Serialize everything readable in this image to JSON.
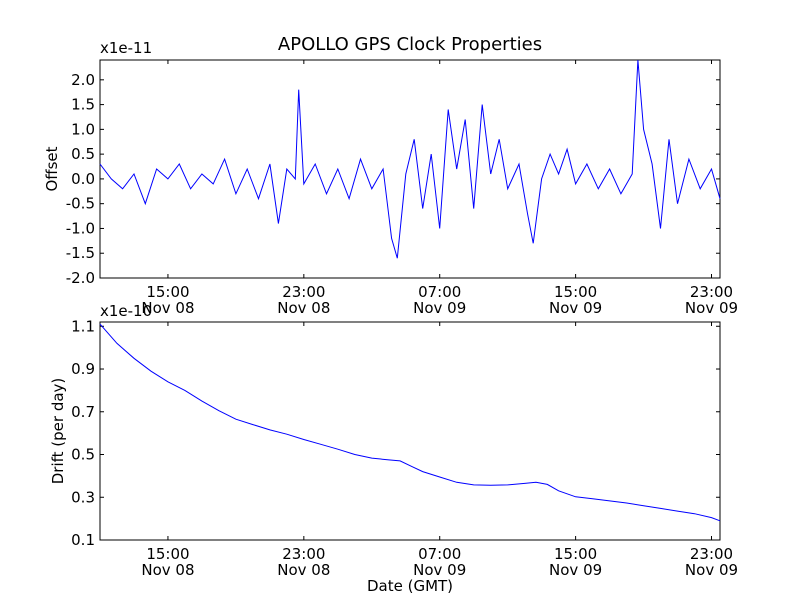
{
  "chart_data": [
    {
      "type": "line",
      "title": "APOLLO GPS Clock Properties",
      "xlabel": "",
      "ylabel": "Offset",
      "y_scale_text": "x1e-11",
      "xlim": [
        "2011-11-08 11:00",
        "2011-11-09 23:30"
      ],
      "ylim": [
        -2.0,
        2.4
      ],
      "yticks": [
        -2.0,
        -1.5,
        -1.0,
        -0.5,
        0.0,
        0.5,
        1.0,
        1.5,
        2.0
      ],
      "ytick_labels": [
        "-2.0",
        "-1.5",
        "-1.0",
        "-0.5",
        "0.0",
        "0.5",
        "1.0",
        "1.5",
        "2.0"
      ],
      "xticks": [
        {
          "at": "2011-11-08 15:00",
          "time": "15:00",
          "date": "Nov 08"
        },
        {
          "at": "2011-11-08 23:00",
          "time": "23:00",
          "date": "Nov 08"
        },
        {
          "at": "2011-11-09 07:00",
          "time": "07:00",
          "date": "Nov 09"
        },
        {
          "at": "2011-11-09 15:00",
          "time": "15:00",
          "date": "Nov 09"
        },
        {
          "at": "2011-11-09 23:00",
          "time": "23:00",
          "date": "Nov 09"
        }
      ],
      "grid": false,
      "line_color": "#0000ff",
      "series": [
        {
          "points": [
            [
              "2011-11-08 11:00",
              0.3
            ],
            [
              "2011-11-08 11:40",
              0.0
            ],
            [
              "2011-11-08 12:20",
              -0.2
            ],
            [
              "2011-11-08 13:00",
              0.1
            ],
            [
              "2011-11-08 13:40",
              -0.5
            ],
            [
              "2011-11-08 14:20",
              0.2
            ],
            [
              "2011-11-08 15:00",
              0.0
            ],
            [
              "2011-11-08 15:40",
              0.3
            ],
            [
              "2011-11-08 16:20",
              -0.2
            ],
            [
              "2011-11-08 17:00",
              0.1
            ],
            [
              "2011-11-08 17:40",
              -0.1
            ],
            [
              "2011-11-08 18:20",
              0.4
            ],
            [
              "2011-11-08 19:00",
              -0.3
            ],
            [
              "2011-11-08 19:40",
              0.2
            ],
            [
              "2011-11-08 20:20",
              -0.4
            ],
            [
              "2011-11-08 21:00",
              0.3
            ],
            [
              "2011-11-08 21:30",
              -0.9
            ],
            [
              "2011-11-08 22:00",
              0.2
            ],
            [
              "2011-11-08 22:30",
              0.0
            ],
            [
              "2011-11-08 22:42",
              1.8
            ],
            [
              "2011-11-08 23:00",
              -0.1
            ],
            [
              "2011-11-08 23:40",
              0.3
            ],
            [
              "2011-11-09 00:20",
              -0.3
            ],
            [
              "2011-11-09 01:00",
              0.2
            ],
            [
              "2011-11-09 01:40",
              -0.4
            ],
            [
              "2011-11-09 02:20",
              0.4
            ],
            [
              "2011-11-09 03:00",
              -0.2
            ],
            [
              "2011-11-09 03:40",
              0.2
            ],
            [
              "2011-11-09 04:10",
              -1.2
            ],
            [
              "2011-11-09 04:30",
              -1.6
            ],
            [
              "2011-11-09 05:00",
              0.1
            ],
            [
              "2011-11-09 05:30",
              0.8
            ],
            [
              "2011-11-09 06:00",
              -0.6
            ],
            [
              "2011-11-09 06:30",
              0.5
            ],
            [
              "2011-11-09 07:00",
              -1.0
            ],
            [
              "2011-11-09 07:30",
              1.4
            ],
            [
              "2011-11-09 08:00",
              0.2
            ],
            [
              "2011-11-09 08:30",
              1.2
            ],
            [
              "2011-11-09 09:00",
              -0.6
            ],
            [
              "2011-11-09 09:30",
              1.5
            ],
            [
              "2011-11-09 10:00",
              0.1
            ],
            [
              "2011-11-09 10:30",
              0.8
            ],
            [
              "2011-11-09 11:00",
              -0.2
            ],
            [
              "2011-11-09 11:40",
              0.3
            ],
            [
              "2011-11-09 12:10",
              -0.7
            ],
            [
              "2011-11-09 12:30",
              -1.3
            ],
            [
              "2011-11-09 13:00",
              0.0
            ],
            [
              "2011-11-09 13:30",
              0.5
            ],
            [
              "2011-11-09 14:00",
              0.1
            ],
            [
              "2011-11-09 14:30",
              0.6
            ],
            [
              "2011-11-09 15:00",
              -0.1
            ],
            [
              "2011-11-09 15:40",
              0.3
            ],
            [
              "2011-11-09 16:20",
              -0.2
            ],
            [
              "2011-11-09 17:00",
              0.2
            ],
            [
              "2011-11-09 17:40",
              -0.3
            ],
            [
              "2011-11-09 18:20",
              0.1
            ],
            [
              "2011-11-09 18:40",
              2.4
            ],
            [
              "2011-11-09 19:00",
              1.0
            ],
            [
              "2011-11-09 19:30",
              0.3
            ],
            [
              "2011-11-09 20:00",
              -1.0
            ],
            [
              "2011-11-09 20:30",
              0.8
            ],
            [
              "2011-11-09 21:00",
              -0.5
            ],
            [
              "2011-11-09 21:40",
              0.4
            ],
            [
              "2011-11-09 22:20",
              -0.2
            ],
            [
              "2011-11-09 23:00",
              0.2
            ],
            [
              "2011-11-09 23:30",
              -0.4
            ]
          ]
        }
      ]
    },
    {
      "type": "line",
      "title": "",
      "xlabel": "Date (GMT)",
      "ylabel": "Drift (per day)",
      "y_scale_text": "x1e-10",
      "xlim": [
        "2011-11-08 11:00",
        "2011-11-09 23:30"
      ],
      "ylim": [
        0.1,
        1.12
      ],
      "yticks": [
        0.1,
        0.3,
        0.5,
        0.7,
        0.9,
        1.1
      ],
      "ytick_labels": [
        "0.1",
        "0.3",
        "0.5",
        "0.7",
        "0.9",
        "1.1"
      ],
      "xticks": [
        {
          "at": "2011-11-08 15:00",
          "time": "15:00",
          "date": "Nov 08"
        },
        {
          "at": "2011-11-08 23:00",
          "time": "23:00",
          "date": "Nov 08"
        },
        {
          "at": "2011-11-09 07:00",
          "time": "07:00",
          "date": "Nov 09"
        },
        {
          "at": "2011-11-09 15:00",
          "time": "15:00",
          "date": "Nov 09"
        },
        {
          "at": "2011-11-09 23:00",
          "time": "23:00",
          "date": "Nov 09"
        }
      ],
      "grid": false,
      "line_color": "#0000ff",
      "series": [
        {
          "points": [
            [
              "2011-11-08 11:00",
              1.11
            ],
            [
              "2011-11-08 12:00",
              1.02
            ],
            [
              "2011-11-08 13:00",
              0.95
            ],
            [
              "2011-11-08 14:00",
              0.89
            ],
            [
              "2011-11-08 15:00",
              0.84
            ],
            [
              "2011-11-08 16:00",
              0.8
            ],
            [
              "2011-11-08 17:00",
              0.75
            ],
            [
              "2011-11-08 18:00",
              0.705
            ],
            [
              "2011-11-08 19:00",
              0.665
            ],
            [
              "2011-11-08 20:00",
              0.64
            ],
            [
              "2011-11-08 21:00",
              0.615
            ],
            [
              "2011-11-08 22:00",
              0.595
            ],
            [
              "2011-11-08 23:00",
              0.57
            ],
            [
              "2011-11-09 00:00",
              0.548
            ],
            [
              "2011-11-09 01:00",
              0.525
            ],
            [
              "2011-11-09 02:00",
              0.5
            ],
            [
              "2011-11-09 03:00",
              0.483
            ],
            [
              "2011-11-09 04:00",
              0.475
            ],
            [
              "2011-11-09 04:40",
              0.47
            ],
            [
              "2011-11-09 05:20",
              0.445
            ],
            [
              "2011-11-09 06:00",
              0.42
            ],
            [
              "2011-11-09 07:00",
              0.395
            ],
            [
              "2011-11-09 08:00",
              0.37
            ],
            [
              "2011-11-09 09:00",
              0.358
            ],
            [
              "2011-11-09 10:00",
              0.356
            ],
            [
              "2011-11-09 11:00",
              0.358
            ],
            [
              "2011-11-09 12:00",
              0.365
            ],
            [
              "2011-11-09 12:40",
              0.37
            ],
            [
              "2011-11-09 13:20",
              0.36
            ],
            [
              "2011-11-09 14:00",
              0.33
            ],
            [
              "2011-11-09 15:00",
              0.302
            ],
            [
              "2011-11-09 16:00",
              0.293
            ],
            [
              "2011-11-09 17:00",
              0.283
            ],
            [
              "2011-11-09 18:00",
              0.273
            ],
            [
              "2011-11-09 19:00",
              0.26
            ],
            [
              "2011-11-09 20:00",
              0.248
            ],
            [
              "2011-11-09 21:00",
              0.235
            ],
            [
              "2011-11-09 22:00",
              0.223
            ],
            [
              "2011-11-09 23:00",
              0.205
            ],
            [
              "2011-11-09 23:30",
              0.19
            ]
          ]
        }
      ]
    }
  ]
}
